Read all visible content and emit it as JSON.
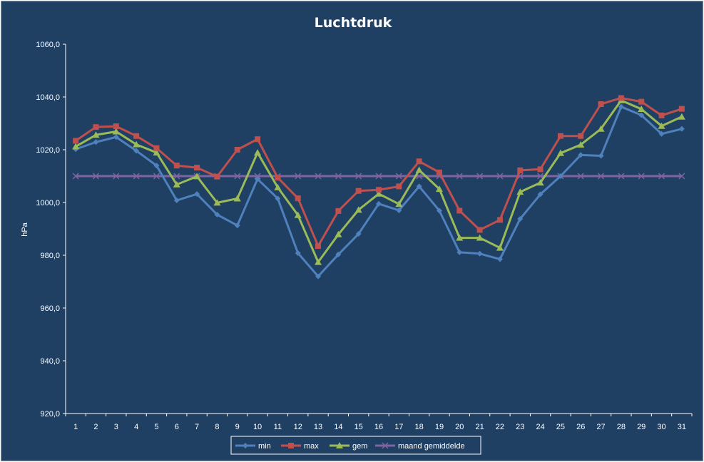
{
  "chart_data": {
    "type": "line",
    "title": "Luchtdruk",
    "xlabel": "",
    "ylabel": "hPa",
    "ylim": [
      920,
      1060
    ],
    "y_ticks": [
      "920,0",
      "940,0",
      "960,0",
      "980,0",
      "1000,0",
      "1020,0",
      "1040,0",
      "1060,0"
    ],
    "y_tick_values": [
      920,
      940,
      960,
      980,
      1000,
      1020,
      1040,
      1060
    ],
    "categories": [
      "1",
      "2",
      "3",
      "4",
      "5",
      "6",
      "7",
      "8",
      "9",
      "10",
      "11",
      "12",
      "13",
      "14",
      "15",
      "16",
      "17",
      "18",
      "19",
      "20",
      "21",
      "22",
      "23",
      "24",
      "25",
      "26",
      "27",
      "28",
      "29",
      "30",
      "31"
    ],
    "grid": false,
    "legend_position": "bottom",
    "series": [
      {
        "name": "min",
        "color": "#4f81bd",
        "marker": "diamond",
        "values": [
          1020.2,
          1022.9,
          1024.8,
          1019.6,
          1014.0,
          1000.8,
          1003.2,
          995.4,
          991.3,
          1008.9,
          1001.5,
          980.8,
          972.0,
          980.3,
          988.1,
          999.5,
          997.0,
          1006.1,
          996.9,
          981.1,
          980.6,
          978.5,
          993.8,
          1003.1,
          1010.0,
          1018.0,
          1017.7,
          1036.3,
          1033.1,
          1026.0,
          1027.9
        ]
      },
      {
        "name": "max",
        "color": "#c0504d",
        "marker": "square",
        "values": [
          1023.4,
          1028.6,
          1028.9,
          1025.2,
          1020.6,
          1014.0,
          1013.2,
          1009.8,
          1020.0,
          1024.0,
          1009.4,
          1001.6,
          983.5,
          996.8,
          1004.4,
          1004.8,
          1006.1,
          1015.6,
          1011.4,
          996.9,
          989.6,
          993.4,
          1012.2,
          1012.6,
          1025.2,
          1025.2,
          1037.3,
          1039.6,
          1038.2,
          1033.0,
          1035.5
        ]
      },
      {
        "name": "gem",
        "color": "#9bbb59",
        "marker": "triangle",
        "values": [
          1021.2,
          1025.6,
          1026.9,
          1022.0,
          1018.9,
          1006.8,
          1009.9,
          999.9,
          1001.5,
          1018.9,
          1005.7,
          995.2,
          977.4,
          987.9,
          997.2,
          1003.3,
          999.4,
          1012.3,
          1005.1,
          986.6,
          986.6,
          982.8,
          1004.0,
          1007.5,
          1018.7,
          1021.9,
          1027.9,
          1038.7,
          1035.4,
          1029.0,
          1032.5
        ]
      },
      {
        "name": "maand gemiddelde",
        "color": "#8064a2",
        "marker": "x",
        "values": [
          1010,
          1010,
          1010,
          1010,
          1010,
          1010,
          1010,
          1010,
          1010,
          1010,
          1010,
          1010,
          1010,
          1010,
          1010,
          1010,
          1010,
          1010,
          1010,
          1010,
          1010,
          1010,
          1010,
          1010,
          1010,
          1010,
          1010,
          1010,
          1010,
          1010,
          1010
        ]
      }
    ]
  },
  "colors": {
    "background": "#1f3f63",
    "axis": "#ffffff",
    "text": "#ffffff"
  }
}
